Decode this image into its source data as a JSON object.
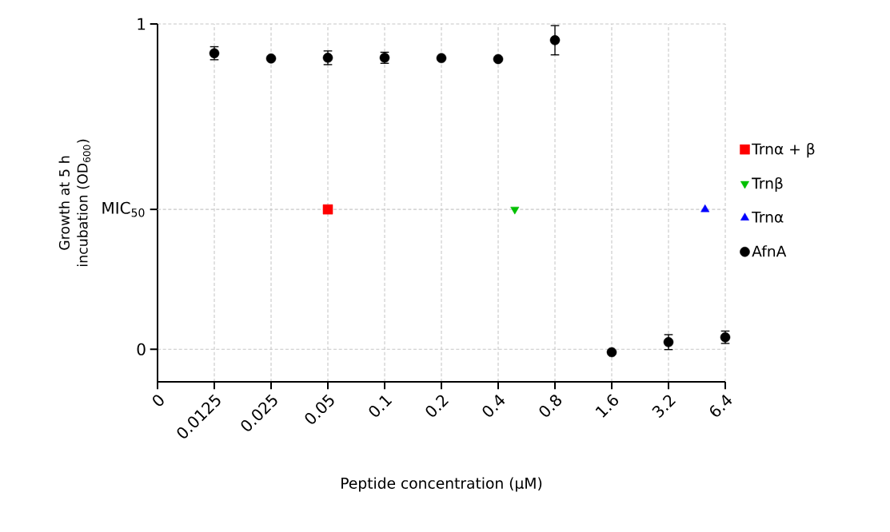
{
  "chart_data": {
    "type": "scatter",
    "xlabel": "Peptide concentration (μM)",
    "ylabel": "Growth at 5 h incubation (OD$_{600}$)",
    "log": "x",
    "xlim": [
      0.00625,
      6.4
    ],
    "ylim": [
      -0.1,
      1
    ],
    "xticks": [
      {
        "value": 0.00625,
        "label": "0"
      },
      0.0125,
      0.025,
      0.05,
      0.1,
      0.2,
      0.4,
      0.8,
      1.6,
      3.2,
      6.4
    ],
    "yticks": [
      0,
      1
    ],
    "ref_lines": [
      {
        "axis": "y",
        "value": 0.43,
        "label": "MIC$_{50}$",
        "color": "#c8c8c8",
        "line_style": "dashed"
      }
    ],
    "grid": true,
    "legend": "right",
    "series": [
      {
        "name": "Trnα + β",
        "color": "#ff0000",
        "marker": "square",
        "x": [
          0.05
        ],
        "values": [
          0.43
        ]
      },
      {
        "name": "Trnβ",
        "color": "#00c000",
        "marker": "triangle-down",
        "x": [
          0.49
        ],
        "values": [
          0.43
        ]
      },
      {
        "name": "Trnα",
        "color": "#0000ff",
        "marker": "triangle",
        "x": [
          5.0
        ],
        "values": [
          0.43
        ]
      },
      {
        "name": "AfnA",
        "color": "#000000",
        "marker": "circle",
        "x": [
          0.0125,
          0.025,
          0.05,
          0.1,
          0.2,
          0.4,
          0.8,
          1.6,
          3.2,
          6.4
        ],
        "values": [
          0.91,
          0.894,
          0.896,
          0.896,
          0.895,
          0.892,
          0.95,
          -0.009,
          0.022,
          0.037
        ],
        "errors": [
          0.02,
          null,
          0.021,
          0.017,
          null,
          null,
          0.045,
          null,
          0.023,
          0.019
        ]
      }
    ]
  }
}
